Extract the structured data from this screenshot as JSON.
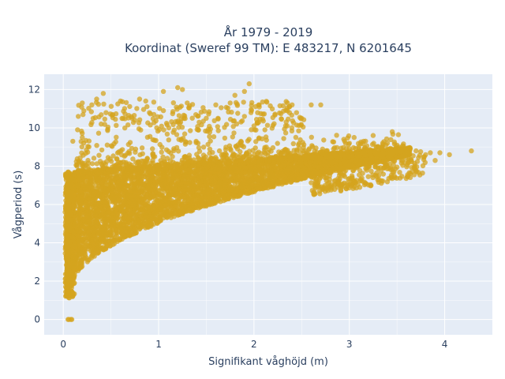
{
  "chart_data": {
    "type": "scatter",
    "title": {
      "line1": "År 1979 - 2019",
      "line2": "Koordinat (Sweref 99 TM): E 483217, N 6201645"
    },
    "xlabel": "Signifikant våghöjd (m)",
    "ylabel": "Vågperiod (s)",
    "xlim": [
      -0.2,
      4.5
    ],
    "ylim": [
      -0.8,
      12.8
    ],
    "xticks": [
      0,
      1,
      2,
      3,
      4
    ],
    "yticks": [
      0,
      2,
      4,
      6,
      8,
      10,
      12
    ],
    "grid": true,
    "legend": "none",
    "colors": {
      "marker": "#d4a41f",
      "plot_background": "#e5ecf6",
      "grid": "#ffffff",
      "text": "#2a3f5f"
    },
    "marker_opacity": 0.75,
    "outliers": [
      [
        0.05,
        0.0
      ],
      [
        0.06,
        0.0
      ],
      [
        0.08,
        0.0
      ],
      [
        0.09,
        0.0
      ],
      [
        1.95,
        12.3
      ],
      [
        1.9,
        11.9
      ],
      [
        1.2,
        12.1
      ],
      [
        1.25,
        12.0
      ],
      [
        1.05,
        11.9
      ],
      [
        0.42,
        11.8
      ],
      [
        0.35,
        11.5
      ],
      [
        0.3,
        11.2
      ],
      [
        0.2,
        11.3
      ],
      [
        0.6,
        11.4
      ],
      [
        2.7,
        11.2
      ],
      [
        2.35,
        11.3
      ],
      [
        2.4,
        11.2
      ],
      [
        2.05,
        11.2
      ],
      [
        1.75,
        11.3
      ],
      [
        1.6,
        11.2
      ],
      [
        1.3,
        11.3
      ],
      [
        0.8,
        11.5
      ],
      [
        1.8,
        11.7
      ],
      [
        2.6,
        11.2
      ],
      [
        4.28,
        8.8
      ],
      [
        4.05,
        8.6
      ],
      [
        3.95,
        8.7
      ],
      [
        3.85,
        8.7
      ],
      [
        3.8,
        8.6
      ],
      [
        3.7,
        8.8
      ],
      [
        3.6,
        8.7
      ],
      [
        3.55,
        8.5
      ],
      [
        3.45,
        9.8
      ],
      [
        3.5,
        9.1
      ],
      [
        3.35,
        9.2
      ],
      [
        3.25,
        9.6
      ],
      [
        3.15,
        9.3
      ],
      [
        3.05,
        9.5
      ],
      [
        2.95,
        9.3
      ],
      [
        2.8,
        8.3
      ],
      [
        2.9,
        8.5
      ],
      [
        3.2,
        8.8
      ],
      [
        3.9,
        8.3
      ],
      [
        3.65,
        8.3
      ],
      [
        2.0,
        10.1
      ],
      [
        2.05,
        10.3
      ],
      [
        1.9,
        10.6
      ],
      [
        0.95,
        10.7
      ],
      [
        1.05,
        10.9
      ],
      [
        0.15,
        9.9
      ],
      [
        0.2,
        9.5
      ],
      [
        0.1,
        9.3
      ],
      [
        0.75,
        10.4
      ],
      [
        1.5,
        10.5
      ]
    ]
  }
}
